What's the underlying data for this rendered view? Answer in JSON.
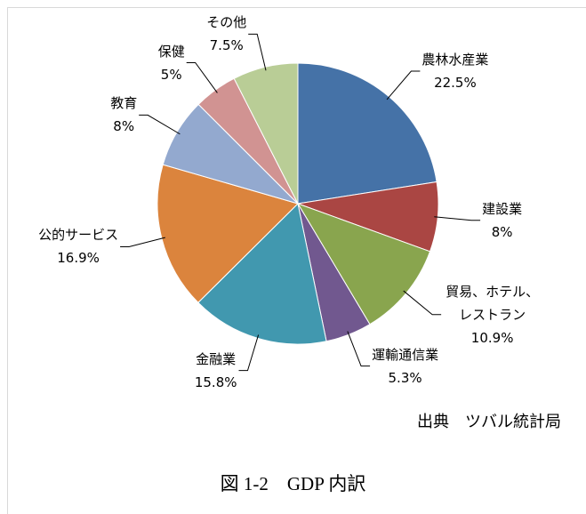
{
  "chart_data": {
    "type": "pie",
    "categories": [
      "農林水産業",
      "建設業",
      "貿易、ホテル、レストラン",
      "運輸通信業",
      "金融業",
      "公的サービス",
      "教育",
      "保健",
      "その他"
    ],
    "values": [
      22.5,
      8,
      10.9,
      5.3,
      15.8,
      16.9,
      8,
      5,
      7.5
    ],
    "value_labels": [
      "22.5%",
      "8%",
      "10.9%",
      "5.3%",
      "15.8%",
      "16.9%",
      "8%",
      "5%",
      "7.5%"
    ],
    "colors": [
      "#4572a7",
      "#aa4643",
      "#89a54e",
      "#71588f",
      "#4198af",
      "#db843d",
      "#93a9cf",
      "#d19392",
      "#b9cd96"
    ],
    "source": "出典　ツバル統計局",
    "caption": "図 1-2　GDP 内訳"
  }
}
